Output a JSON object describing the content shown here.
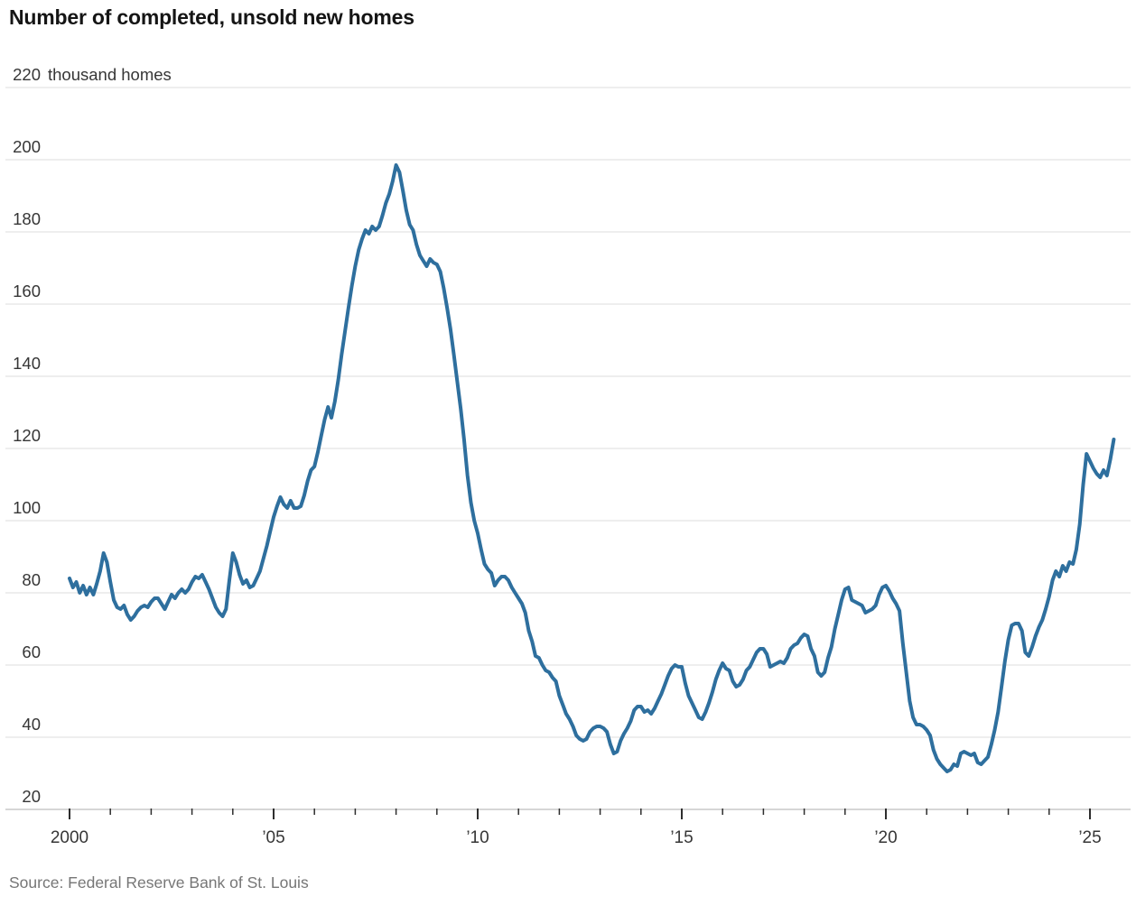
{
  "header": {
    "title": "Number of completed, unsold new homes"
  },
  "footer": {
    "source": "Source: Federal Reserve Bank of St. Louis"
  },
  "chart_data": {
    "type": "line",
    "title": "Number of completed, unsold new homes",
    "ylabel": "thousand homes",
    "unit_label": "thousand homes",
    "ylim": [
      20,
      220
    ],
    "y_ticks": [
      20,
      40,
      60,
      80,
      100,
      120,
      140,
      160,
      180,
      200,
      220
    ],
    "x_range_years": [
      2000,
      2025
    ],
    "x_major_labels": [
      {
        "year": 2000,
        "label": "2000"
      },
      {
        "year": 2005,
        "label": "’05"
      },
      {
        "year": 2010,
        "label": "’10"
      },
      {
        "year": 2015,
        "label": "’15"
      },
      {
        "year": 2020,
        "label": "’20"
      },
      {
        "year": 2025,
        "label": "’25"
      }
    ],
    "grid": true,
    "legend": "none",
    "line_color": "#2e6f9e",
    "grid_color": "#e4e4e4",
    "axis_color": "#c9c9c9",
    "tick_color": "#2e2e2e",
    "label_color": "#363636",
    "series_name": "Completed, unsold new homes (thousands)",
    "start_year": 2000,
    "points_per_year": 12,
    "values": [
      84,
      81.5,
      83,
      80,
      82,
      79.5,
      81.5,
      79.5,
      82.5,
      86,
      91,
      88.5,
      83,
      78,
      76,
      75.5,
      76.5,
      74,
      72.5,
      73.5,
      75,
      76,
      76.5,
      76,
      77.5,
      78.5,
      78.5,
      77,
      75.5,
      77.5,
      79.5,
      78.5,
      80,
      81,
      80,
      81,
      83,
      84.5,
      84,
      85,
      83,
      81,
      78.5,
      76,
      74.5,
      73.5,
      75.5,
      83.5,
      91,
      88.5,
      85,
      82.5,
      83.5,
      81.5,
      82,
      84,
      86,
      89.5,
      93,
      97,
      101,
      104,
      106.5,
      104.5,
      103.5,
      105.5,
      103.5,
      103.5,
      104,
      107,
      111,
      114,
      115,
      119,
      123.5,
      128,
      131.5,
      128.5,
      133,
      139,
      146,
      152.5,
      159,
      165,
      170.5,
      175,
      178,
      180.5,
      179.5,
      181.5,
      180.5,
      181.5,
      184.5,
      188,
      190.5,
      194,
      198.5,
      196.5,
      191.5,
      186,
      182,
      180.5,
      176.5,
      173.5,
      172,
      170.5,
      172.5,
      171.5,
      171,
      169,
      164.5,
      159,
      153,
      146,
      138.5,
      131,
      122.5,
      112.5,
      105,
      100,
      96.5,
      92,
      88,
      86.5,
      85.5,
      82,
      83.5,
      84.5,
      84.5,
      83.5,
      81.5,
      80,
      78.5,
      77,
      74.5,
      69.5,
      66.5,
      62.5,
      62,
      60,
      58.5,
      58,
      56.5,
      55.5,
      51.5,
      49,
      46.5,
      45,
      43,
      40.5,
      39.5,
      39,
      39.5,
      41.5,
      42.5,
      43,
      43,
      42.5,
      41.5,
      38,
      35.5,
      36,
      39,
      41,
      42.5,
      44.5,
      47.5,
      48.5,
      48.5,
      47,
      47.5,
      46.5,
      48,
      50,
      52,
      54.5,
      57,
      59,
      60,
      59.5,
      59.5,
      55,
      51.5,
      49.5,
      47.5,
      45.5,
      45,
      47,
      49.5,
      52.5,
      56,
      58.5,
      60.5,
      59,
      58.5,
      55.5,
      54,
      54.5,
      56,
      58.5,
      59.5,
      61.5,
      63.5,
      64.5,
      64.5,
      63,
      59.5,
      60,
      60.5,
      61,
      60.5,
      62,
      64.5,
      65.5,
      66,
      67.5,
      68.5,
      68,
      64.5,
      62.5,
      58,
      57,
      58,
      62,
      65,
      70,
      74,
      78,
      81,
      81.5,
      78,
      77.5,
      77,
      76.5,
      74.5,
      75,
      75.5,
      76.5,
      79.5,
      81.5,
      82,
      80.5,
      78.5,
      77,
      75,
      66,
      58,
      50,
      45.5,
      43.5,
      43.5,
      43,
      42,
      40.5,
      36.5,
      34,
      32.5,
      31.5,
      30.5,
      31,
      32.5,
      32,
      35.5,
      36,
      35.5,
      35,
      35.5,
      33,
      32.5,
      33.5,
      34.5,
      38,
      42,
      47,
      54,
      61,
      67,
      71,
      71.5,
      71.5,
      69.5,
      63.5,
      62.5,
      65,
      68,
      70.5,
      72.5,
      75.5,
      79,
      83.5,
      86,
      84.5,
      87.5,
      86,
      88.5,
      88,
      92,
      99,
      110,
      118.5,
      116.5,
      114.5,
      113,
      112,
      114,
      112.5,
      117,
      122.5
    ]
  }
}
